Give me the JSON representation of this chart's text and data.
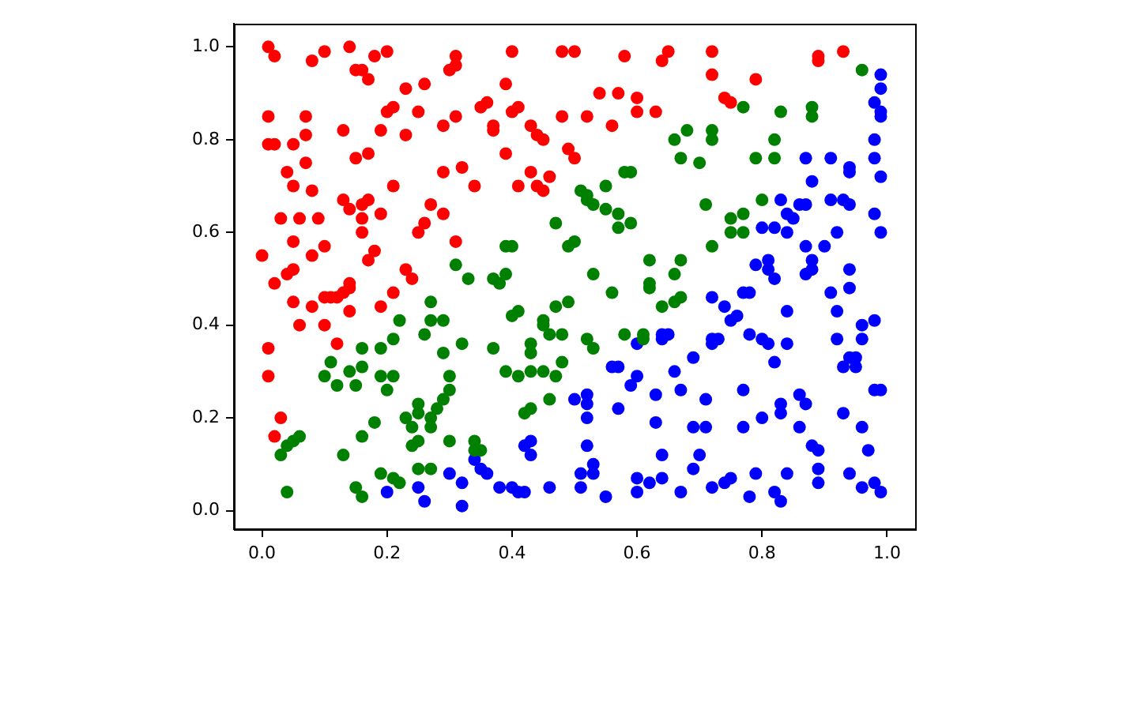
{
  "chart_data": {
    "type": "scatter",
    "xlim": [
      -0.045,
      1.045
    ],
    "ylim": [
      -0.04,
      1.05
    ],
    "xticks": [
      {
        "value": 0,
        "label": "0.0"
      },
      0.2,
      0.4,
      0.6,
      0.8,
      {
        "value": 1,
        "label": "1.0"
      }
    ],
    "yticks": [
      {
        "value": 0,
        "label": "0.0"
      },
      0.2,
      0.4,
      0.6,
      0.8,
      {
        "value": 1,
        "label": "1.0"
      }
    ],
    "marker": "circle",
    "grid": false,
    "legend": false,
    "series": [
      {
        "color": "#ff0000",
        "x": [
          0.01,
          0.02,
          0.08,
          0.1,
          0.14,
          0.18,
          0.2,
          0.15,
          0.16,
          0.17,
          0.23,
          0.26,
          0.31,
          0.3,
          0.01,
          0.07,
          0.2,
          0.21,
          0.25,
          0.29,
          0.31,
          0.13,
          0.19,
          0.23,
          0.01,
          0.02,
          0.05,
          0.07,
          0.15,
          0.17,
          0.04,
          0.07,
          0.29,
          0.05,
          0.08,
          0.21,
          0.13,
          0.14,
          0.16,
          0.17,
          0.16,
          0.19,
          0.27,
          0.29,
          0.03,
          0.06,
          0.09,
          0.16,
          0.25,
          0.26,
          0.31,
          0.05,
          0.08,
          0.1,
          0.18,
          0.17,
          0.0,
          0.04,
          0.05,
          0.02,
          0.23,
          0.24,
          0.14,
          0.31,
          0.4,
          0.48,
          0.5,
          0.58,
          0.64,
          0.65,
          0.39,
          0.35,
          0.36,
          0.4,
          0.41,
          0.37,
          0.37,
          0.43,
          0.44,
          0.45,
          0.48,
          0.52,
          0.54,
          0.57,
          0.6,
          0.6,
          0.63,
          0.56,
          0.49,
          0.5,
          0.39,
          0.32,
          0.34,
          0.41,
          0.43,
          0.46,
          0.44,
          0.45,
          0.72,
          0.72,
          0.79,
          0.74,
          0.75,
          0.89,
          0.89,
          0.93,
          0.05,
          0.06,
          0.08,
          0.1,
          0.1,
          0.11,
          0.12,
          0.13,
          0.14,
          0.14,
          0.12,
          0.01,
          0.01,
          0.03,
          0.02,
          0.19,
          0.21
        ],
        "values": [
          1.0,
          0.98,
          0.97,
          0.99,
          1.0,
          0.98,
          0.99,
          0.95,
          0.95,
          0.93,
          0.91,
          0.92,
          0.98,
          0.95,
          0.85,
          0.85,
          0.86,
          0.87,
          0.86,
          0.83,
          0.85,
          0.82,
          0.82,
          0.81,
          0.79,
          0.79,
          0.79,
          0.81,
          0.76,
          0.77,
          0.73,
          0.75,
          0.73,
          0.7,
          0.69,
          0.7,
          0.67,
          0.65,
          0.66,
          0.67,
          0.63,
          0.64,
          0.66,
          0.64,
          0.63,
          0.63,
          0.63,
          0.6,
          0.6,
          0.62,
          0.58,
          0.58,
          0.55,
          0.57,
          0.56,
          0.54,
          0.55,
          0.51,
          0.52,
          0.49,
          0.52,
          0.5,
          0.49,
          0.96,
          0.99,
          0.99,
          0.99,
          0.98,
          0.97,
          0.99,
          0.92,
          0.87,
          0.88,
          0.86,
          0.87,
          0.83,
          0.82,
          0.83,
          0.81,
          0.8,
          0.85,
          0.85,
          0.9,
          0.9,
          0.89,
          0.86,
          0.86,
          0.83,
          0.78,
          0.76,
          0.77,
          0.74,
          0.7,
          0.7,
          0.73,
          0.72,
          0.7,
          0.69,
          0.99,
          0.94,
          0.93,
          0.89,
          0.88,
          0.98,
          0.97,
          0.99,
          0.45,
          0.4,
          0.44,
          0.4,
          0.46,
          0.46,
          0.46,
          0.47,
          0.48,
          0.43,
          0.36,
          0.35,
          0.29,
          0.2,
          0.16,
          0.44,
          0.47
        ]
      },
      {
        "color": "#008000",
        "x": [
          0.31,
          0.66,
          0.67,
          0.68,
          0.58,
          0.59,
          0.55,
          0.51,
          0.52,
          0.52,
          0.53,
          0.55,
          0.57,
          0.59,
          0.57,
          0.47,
          0.39,
          0.4,
          0.49,
          0.5,
          0.62,
          0.67,
          0.66,
          0.53,
          0.33,
          0.37,
          0.39,
          0.62,
          0.96,
          0.77,
          0.83,
          0.88,
          0.88,
          0.72,
          0.72,
          0.82,
          0.7,
          0.79,
          0.82,
          0.71,
          0.8,
          0.77,
          0.75,
          0.75,
          0.77,
          0.72,
          0.27,
          0.22,
          0.27,
          0.29,
          0.26,
          0.29,
          0.21,
          0.19,
          0.16,
          0.11,
          0.1,
          0.12,
          0.14,
          0.16,
          0.15,
          0.19,
          0.21,
          0.2,
          0.3,
          0.3,
          0.29,
          0.28,
          0.27,
          0.27,
          0.25,
          0.25,
          0.23,
          0.24,
          0.25,
          0.24,
          0.3,
          0.18,
          0.16,
          0.13,
          0.06,
          0.05,
          0.04,
          0.03,
          0.04,
          0.25,
          0.27,
          0.19,
          0.21,
          0.22,
          0.15,
          0.16,
          0.38,
          0.56,
          0.62,
          0.64,
          0.66,
          0.67,
          0.47,
          0.49,
          0.41,
          0.4,
          0.45,
          0.45,
          0.46,
          0.48,
          0.32,
          0.37,
          0.43,
          0.43,
          0.52,
          0.53,
          0.58,
          0.61,
          0.61,
          0.39,
          0.41,
          0.43,
          0.45,
          0.48,
          0.47,
          0.46,
          0.42,
          0.43,
          0.34,
          0.35,
          0.34
        ],
        "values": [
          0.53,
          0.8,
          0.76,
          0.82,
          0.73,
          0.73,
          0.7,
          0.69,
          0.68,
          0.67,
          0.66,
          0.65,
          0.64,
          0.62,
          0.61,
          0.62,
          0.57,
          0.57,
          0.57,
          0.58,
          0.54,
          0.54,
          0.51,
          0.51,
          0.5,
          0.5,
          0.51,
          0.49,
          0.95,
          0.87,
          0.86,
          0.87,
          0.85,
          0.82,
          0.8,
          0.8,
          0.75,
          0.76,
          0.76,
          0.66,
          0.67,
          0.64,
          0.63,
          0.6,
          0.6,
          0.57,
          0.45,
          0.41,
          0.41,
          0.41,
          0.38,
          0.34,
          0.37,
          0.35,
          0.35,
          0.32,
          0.29,
          0.27,
          0.3,
          0.31,
          0.27,
          0.29,
          0.29,
          0.26,
          0.29,
          0.26,
          0.24,
          0.22,
          0.2,
          0.18,
          0.23,
          0.21,
          0.2,
          0.18,
          0.15,
          0.14,
          0.15,
          0.19,
          0.16,
          0.12,
          0.16,
          0.15,
          0.14,
          0.12,
          0.04,
          0.09,
          0.09,
          0.08,
          0.07,
          0.06,
          0.05,
          0.03,
          0.49,
          0.47,
          0.48,
          0.44,
          0.45,
          0.46,
          0.44,
          0.45,
          0.43,
          0.42,
          0.41,
          0.4,
          0.38,
          0.38,
          0.36,
          0.35,
          0.36,
          0.34,
          0.37,
          0.35,
          0.38,
          0.38,
          0.37,
          0.3,
          0.29,
          0.3,
          0.3,
          0.32,
          0.29,
          0.24,
          0.21,
          0.22,
          0.15,
          0.13,
          0.13
        ]
      },
      {
        "color": "#0000ff",
        "x": [
          0.99,
          0.99,
          0.98,
          0.99,
          0.99,
          0.98,
          0.98,
          0.99,
          0.87,
          0.88,
          0.91,
          0.94,
          0.94,
          0.83,
          0.84,
          0.85,
          0.86,
          0.87,
          0.91,
          0.93,
          0.94,
          0.98,
          0.99,
          0.8,
          0.82,
          0.84,
          0.87,
          0.9,
          0.92,
          0.79,
          0.81,
          0.81,
          0.82,
          0.88,
          0.88,
          0.87,
          0.94,
          0.2,
          0.25,
          0.26,
          0.3,
          0.5,
          0.52,
          0.52,
          0.52,
          0.6,
          0.64,
          0.65,
          0.64,
          0.56,
          0.57,
          0.59,
          0.6,
          0.66,
          0.67,
          0.63,
          0.57,
          0.63,
          0.52,
          0.42,
          0.43,
          0.43,
          0.34,
          0.35,
          0.36,
          0.32,
          0.32,
          0.38,
          0.4,
          0.41,
          0.42,
          0.46,
          0.51,
          0.51,
          0.53,
          0.53,
          0.55,
          0.6,
          0.62,
          0.6,
          0.64,
          0.64,
          0.67,
          0.72,
          0.74,
          0.77,
          0.78,
          0.84,
          0.91,
          0.94,
          0.92,
          0.75,
          0.76,
          0.78,
          0.72,
          0.72,
          0.73,
          0.8,
          0.81,
          0.84,
          0.82,
          0.69,
          0.96,
          0.98,
          0.96,
          0.92,
          0.94,
          0.95,
          0.95,
          0.93,
          0.98,
          0.99,
          0.71,
          0.77,
          0.86,
          0.87,
          0.83,
          0.83,
          0.8,
          0.93,
          0.69,
          0.71,
          0.77,
          0.86,
          0.96,
          0.88,
          0.89,
          0.97,
          0.7,
          0.69,
          0.89,
          0.89,
          0.84,
          0.79,
          0.74,
          0.75,
          0.72,
          0.78,
          0.82,
          0.83,
          0.94,
          0.96,
          0.98,
          0.99
        ],
        "values": [
          0.94,
          0.91,
          0.88,
          0.86,
          0.85,
          0.8,
          0.76,
          0.72,
          0.76,
          0.71,
          0.76,
          0.73,
          0.74,
          0.67,
          0.64,
          0.63,
          0.66,
          0.66,
          0.67,
          0.67,
          0.66,
          0.64,
          0.6,
          0.61,
          0.61,
          0.6,
          0.57,
          0.57,
          0.6,
          0.53,
          0.54,
          0.52,
          0.5,
          0.54,
          0.52,
          0.51,
          0.52,
          0.04,
          0.05,
          0.02,
          0.08,
          0.24,
          0.25,
          0.23,
          0.2,
          0.36,
          0.38,
          0.38,
          0.37,
          0.31,
          0.31,
          0.27,
          0.29,
          0.3,
          0.26,
          0.25,
          0.22,
          0.19,
          0.14,
          0.14,
          0.15,
          0.12,
          0.11,
          0.09,
          0.08,
          0.06,
          0.01,
          0.05,
          0.05,
          0.04,
          0.04,
          0.05,
          0.05,
          0.08,
          0.08,
          0.1,
          0.03,
          0.07,
          0.06,
          0.04,
          0.07,
          0.12,
          0.04,
          0.46,
          0.44,
          0.47,
          0.47,
          0.43,
          0.47,
          0.48,
          0.43,
          0.41,
          0.42,
          0.38,
          0.37,
          0.36,
          0.37,
          0.37,
          0.36,
          0.36,
          0.32,
          0.33,
          0.4,
          0.41,
          0.37,
          0.37,
          0.33,
          0.33,
          0.31,
          0.31,
          0.26,
          0.26,
          0.24,
          0.26,
          0.25,
          0.23,
          0.23,
          0.21,
          0.2,
          0.21,
          0.18,
          0.18,
          0.18,
          0.18,
          0.18,
          0.14,
          0.13,
          0.13,
          0.12,
          0.09,
          0.09,
          0.06,
          0.08,
          0.08,
          0.06,
          0.07,
          0.05,
          0.03,
          0.04,
          0.02,
          0.08,
          0.05,
          0.06,
          0.04
        ]
      }
    ]
  }
}
